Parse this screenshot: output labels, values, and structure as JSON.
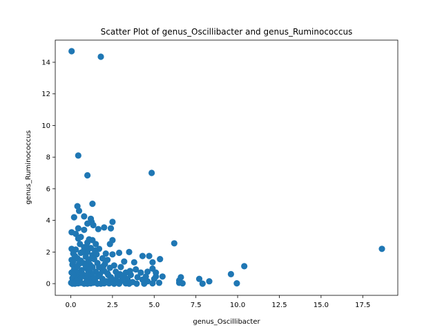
{
  "chart_data": {
    "type": "scatter",
    "title": "Scatter Plot of genus_Oscillibacter and genus_Ruminococcus",
    "xlabel": "genus_Oscillibacter",
    "ylabel": "genus_Ruminococcus",
    "xlim": [
      -0.93,
      19.6
    ],
    "ylim": [
      -0.74,
      15.4
    ],
    "xticks": [
      "0.0",
      "2.5",
      "5.0",
      "7.5",
      "10.0",
      "12.5",
      "15.0",
      "17.5"
    ],
    "xtick_values": [
      0,
      2.5,
      5,
      7.5,
      10,
      12.5,
      15,
      17.5
    ],
    "yticks": [
      "0",
      "2",
      "4",
      "6",
      "8",
      "10",
      "12",
      "14"
    ],
    "ytick_values": [
      0,
      2,
      4,
      6,
      8,
      10,
      12,
      14
    ],
    "grid": false,
    "marker_color": "#1f77b4",
    "points": [
      [
        0.05,
        14.7
      ],
      [
        1.8,
        14.35
      ],
      [
        0.45,
        8.1
      ],
      [
        1.0,
        6.85
      ],
      [
        4.85,
        7.0
      ],
      [
        1.3,
        5.05
      ],
      [
        0.4,
        4.9
      ],
      [
        0.5,
        4.6
      ],
      [
        0.2,
        4.2
      ],
      [
        0.8,
        4.25
      ],
      [
        1.2,
        4.1
      ],
      [
        1.25,
        3.9
      ],
      [
        2.5,
        3.9
      ],
      [
        1.0,
        3.8
      ],
      [
        1.35,
        3.7
      ],
      [
        0.45,
        3.5
      ],
      [
        1.65,
        3.45
      ],
      [
        2.0,
        3.55
      ],
      [
        2.4,
        3.5
      ],
      [
        0.8,
        3.4
      ],
      [
        0.05,
        3.25
      ],
      [
        0.3,
        3.15
      ],
      [
        0.6,
        2.95
      ],
      [
        0.45,
        2.85
      ],
      [
        1.1,
        2.8
      ],
      [
        1.3,
        2.75
      ],
      [
        2.5,
        2.75
      ],
      [
        6.2,
        2.55
      ],
      [
        1.0,
        2.6
      ],
      [
        1.5,
        2.5
      ],
      [
        2.35,
        2.5
      ],
      [
        0.05,
        2.2
      ],
      [
        0.3,
        2.15
      ],
      [
        0.8,
        2.3
      ],
      [
        1.2,
        2.25
      ],
      [
        1.7,
        2.2
      ],
      [
        3.5,
        2.0
      ],
      [
        18.65,
        2.2
      ],
      [
        0.15,
        1.9
      ],
      [
        0.6,
        1.95
      ],
      [
        1.0,
        2.0
      ],
      [
        2.1,
        1.9
      ],
      [
        2.5,
        1.85
      ],
      [
        2.9,
        1.95
      ],
      [
        4.3,
        1.75
      ],
      [
        4.7,
        1.75
      ],
      [
        5.35,
        1.55
      ],
      [
        0.05,
        1.5
      ],
      [
        0.4,
        1.6
      ],
      [
        0.9,
        1.7
      ],
      [
        1.4,
        1.55
      ],
      [
        1.9,
        1.6
      ],
      [
        2.2,
        1.5
      ],
      [
        3.2,
        1.4
      ],
      [
        3.8,
        1.35
      ],
      [
        4.9,
        1.35
      ],
      [
        0.1,
        1.2
      ],
      [
        0.5,
        1.25
      ],
      [
        0.75,
        1.3
      ],
      [
        1.15,
        1.2
      ],
      [
        1.6,
        1.3
      ],
      [
        2.05,
        1.25
      ],
      [
        2.6,
        1.15
      ],
      [
        10.4,
        1.1
      ],
      [
        0.3,
        1.05
      ],
      [
        0.9,
        1.0
      ],
      [
        1.3,
        1.05
      ],
      [
        1.85,
        0.95
      ],
      [
        2.35,
        1.0
      ],
      [
        3.0,
        1.05
      ],
      [
        4.9,
        0.95
      ],
      [
        3.9,
        0.9
      ],
      [
        0.2,
        0.9
      ],
      [
        0.65,
        0.85
      ],
      [
        1.05,
        0.8
      ],
      [
        1.5,
        0.75
      ],
      [
        2.0,
        0.8
      ],
      [
        2.7,
        0.75
      ],
      [
        3.3,
        0.7
      ],
      [
        4.2,
        0.7
      ],
      [
        4.6,
        0.75
      ],
      [
        5.1,
        0.7
      ],
      [
        0.05,
        0.7
      ],
      [
        0.45,
        0.65
      ],
      [
        1.25,
        0.6
      ],
      [
        1.75,
        0.6
      ],
      [
        2.25,
        0.55
      ],
      [
        2.95,
        0.6
      ],
      [
        3.6,
        0.55
      ],
      [
        9.6,
        0.6
      ],
      [
        0.3,
        0.5
      ],
      [
        0.85,
        0.45
      ],
      [
        1.6,
        0.45
      ],
      [
        2.4,
        0.4
      ],
      [
        3.2,
        0.45
      ],
      [
        4.0,
        0.4
      ],
      [
        4.5,
        0.45
      ],
      [
        5.1,
        0.45
      ],
      [
        5.5,
        0.45
      ],
      [
        6.6,
        0.4
      ],
      [
        7.7,
        0.3
      ],
      [
        0.1,
        0.35
      ],
      [
        0.55,
        0.3
      ],
      [
        1.1,
        0.3
      ],
      [
        1.9,
        0.3
      ],
      [
        2.7,
        0.25
      ],
      [
        3.4,
        0.3
      ],
      [
        4.3,
        0.25
      ],
      [
        5.0,
        0.3
      ],
      [
        6.5,
        0.2
      ],
      [
        8.3,
        0.15
      ],
      [
        0.35,
        0.2
      ],
      [
        0.95,
        0.15
      ],
      [
        1.45,
        0.2
      ],
      [
        2.15,
        0.15
      ],
      [
        3.0,
        0.15
      ],
      [
        3.7,
        0.1
      ],
      [
        4.6,
        0.15
      ],
      [
        5.3,
        0.05
      ],
      [
        6.5,
        0.05
      ],
      [
        6.7,
        0.02
      ],
      [
        7.9,
        0.0
      ],
      [
        9.95,
        0.02
      ],
      [
        0.02,
        0.05
      ],
      [
        0.25,
        0.0
      ],
      [
        0.6,
        0.05
      ],
      [
        1.0,
        0.0
      ],
      [
        1.35,
        0.05
      ],
      [
        1.8,
        0.0
      ],
      [
        2.3,
        0.02
      ],
      [
        2.6,
        0.0
      ],
      [
        3.3,
        0.02
      ],
      [
        3.95,
        0.0
      ],
      [
        4.9,
        0.02
      ],
      [
        0.1,
        0.0
      ],
      [
        0.45,
        0.02
      ],
      [
        0.8,
        0.0
      ],
      [
        1.2,
        0.02
      ],
      [
        1.6,
        0.0
      ],
      [
        2.0,
        0.02
      ],
      [
        2.9,
        0.0
      ],
      [
        3.5,
        0.0
      ],
      [
        4.4,
        0.0
      ],
      [
        0.15,
        1.4
      ],
      [
        0.6,
        1.45
      ],
      [
        1.05,
        1.4
      ],
      [
        1.3,
        1.8
      ],
      [
        1.55,
        1.85
      ],
      [
        0.25,
        1.75
      ],
      [
        0.7,
        2.0
      ],
      [
        1.45,
        2.1
      ],
      [
        0.35,
        0.75
      ],
      [
        0.7,
        0.6
      ],
      [
        1.15,
        0.9
      ],
      [
        1.95,
        1.1
      ],
      [
        2.8,
        0.5
      ],
      [
        3.55,
        0.8
      ],
      [
        0.4,
        1.1
      ],
      [
        0.55,
        2.5
      ],
      [
        0.95,
        2.35
      ],
      [
        1.7,
        1.05
      ],
      [
        2.2,
        0.65
      ],
      [
        1.4,
        0.35
      ],
      [
        0.15,
        0.6
      ],
      [
        0.9,
        1.15
      ],
      [
        1.25,
        1.6
      ],
      [
        0.5,
        0.1
      ],
      [
        2.45,
        0.3
      ],
      [
        3.1,
        0.35
      ],
      [
        1.0,
        0.55
      ]
    ]
  }
}
